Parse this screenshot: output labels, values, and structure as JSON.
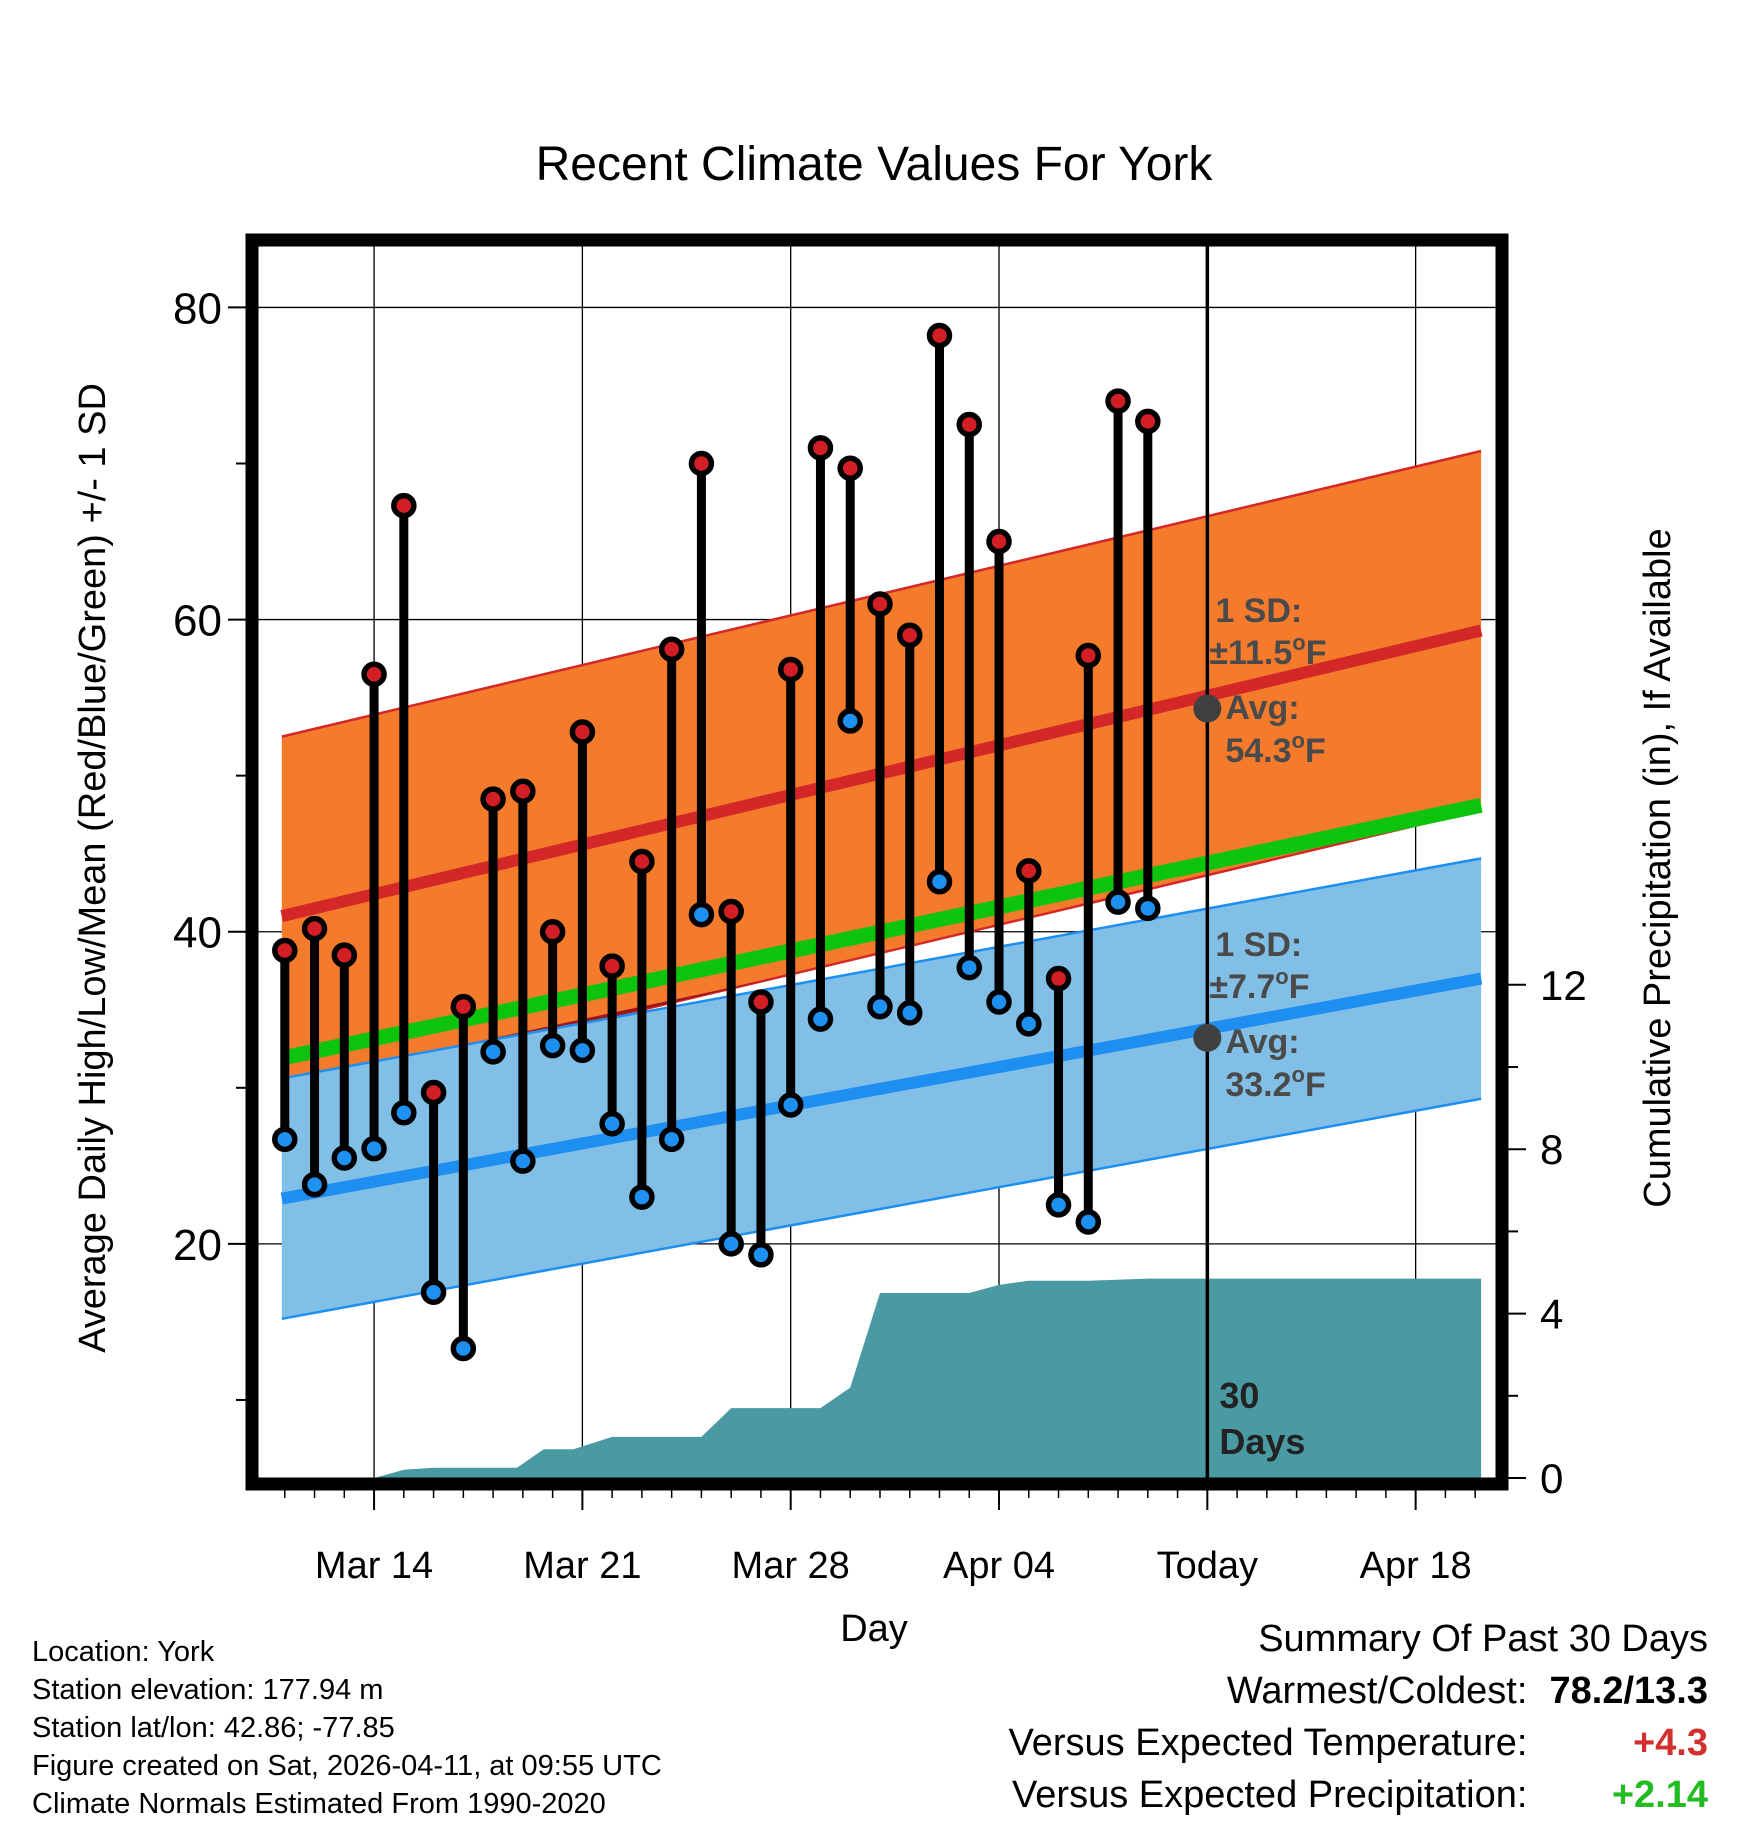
{
  "chart_data": {
    "type": "range_bar_with_bands",
    "title": "Recent Climate Values For York",
    "xlabel": "Day",
    "ylabel_left": "Average Daily High/Low/Mean (Red/Blue/Green) +/- 1 SD",
    "ylabel_right": "Cumulative Precipitation (in), If Available",
    "ylim": [
      5,
      84
    ],
    "y_ticks": [
      20,
      40,
      60,
      80
    ],
    "precip_ylim": [
      0,
      30
    ],
    "precip_ticks": [
      0,
      4,
      8,
      12
    ],
    "x_tick_labels": [
      {
        "day": 4,
        "label": "Mar 14"
      },
      {
        "day": 11,
        "label": "Mar 21"
      },
      {
        "day": 18,
        "label": "Mar 28"
      },
      {
        "day": 25,
        "label": "Apr 04"
      },
      {
        "day": 32,
        "label": "Today"
      },
      {
        "day": 39,
        "label": "Apr 18"
      }
    ],
    "xlim": [
      0.1,
      41.7
    ],
    "today_day": 32,
    "today_label": [
      "30",
      "Days"
    ],
    "highs": [
      38.8,
      40.2,
      38.5,
      56.5,
      67.3,
      29.7,
      35.2,
      48.5,
      49.0,
      40.0,
      52.8,
      37.8,
      44.5,
      58.1,
      70.0,
      41.3,
      35.5,
      56.8,
      71.0,
      69.7,
      61.0,
      59.0,
      78.2,
      72.5,
      65.0,
      43.9,
      37.0,
      57.7,
      74.0,
      72.7
    ],
    "lows": [
      26.7,
      23.8,
      25.5,
      26.1,
      28.4,
      16.9,
      13.3,
      32.3,
      25.3,
      32.7,
      32.4,
      27.7,
      23.0,
      26.7,
      41.1,
      20.0,
      19.3,
      28.9,
      34.4,
      53.5,
      35.2,
      34.8,
      43.2,
      37.7,
      35.5,
      34.1,
      22.5,
      21.4,
      41.9,
      41.5
    ],
    "normal_high": {
      "start": 41.0,
      "end": 59.3
    },
    "normal_low": {
      "start": 22.9,
      "end": 37.0
    },
    "normal_mean": {
      "start": 31.9,
      "end": 48.1
    },
    "sd_high": 11.5,
    "sd_low": 7.7,
    "annotation_high": {
      "sd": "1 SD:",
      "pm": "±11.5",
      "sup": "o",
      "unit": "F",
      "avg": "Avg:",
      "avg_value": "54.3",
      "avg_marker": 54.3
    },
    "annotation_low": {
      "sd": "1 SD:",
      "pm": "±7.7",
      "sup": "o",
      "unit": "F",
      "avg": "Avg:",
      "avg_value": "33.2",
      "avg_marker": 33.2
    },
    "precip_cumulative": [
      [
        0.9,
        0
      ],
      [
        4.0,
        0
      ],
      [
        5.0,
        0.2
      ],
      [
        6.0,
        0.25
      ],
      [
        8.8,
        0.25
      ],
      [
        9.7,
        0.7
      ],
      [
        10.7,
        0.7
      ],
      [
        12.0,
        1.0
      ],
      [
        14.0,
        1.0
      ],
      [
        15.0,
        1.0
      ],
      [
        16.0,
        1.7
      ],
      [
        18.0,
        1.7
      ],
      [
        19.0,
        1.7
      ],
      [
        20.0,
        2.2
      ],
      [
        21.0,
        4.5
      ],
      [
        23.0,
        4.5
      ],
      [
        24.0,
        4.5
      ],
      [
        25.0,
        4.7
      ],
      [
        26.0,
        4.8
      ],
      [
        28.0,
        4.8
      ],
      [
        30.0,
        4.85
      ],
      [
        41.2,
        4.85
      ]
    ]
  },
  "colors": {
    "high_band": "#f47a2c",
    "high_line": "#d42828",
    "low_band": "#82bfe6",
    "low_line": "#1e8ff0",
    "mean_line": "#0dc40d",
    "dark_red": "#a0141a",
    "precip": "#4a9aa4",
    "high_dot": "#d21f25",
    "low_dot": "#1e90ef",
    "avg_marker": "#404040",
    "annotation": "#4a4a4a",
    "positive_temp": "#d32f2f",
    "positive_precip": "#22bb22"
  },
  "info": {
    "location": "Location: York",
    "elevation": "Station elevation: 177.94 m",
    "latlon": "Station lat/lon: 42.86; -77.85",
    "created": "Figure created on Sat, 2026-04-11, at 09:55 UTC",
    "normals": "Climate Normals Estimated From 1990-2020"
  },
  "summary": {
    "title": "Summary Of Past 30 Days",
    "warmest_label": "Warmest/Coldest:",
    "warmest_value": "78.2/13.3",
    "temp_label": "Versus Expected Temperature:",
    "temp_value": "+4.3",
    "precip_label": "Versus Expected Precipitation:",
    "precip_value": "+2.14"
  }
}
